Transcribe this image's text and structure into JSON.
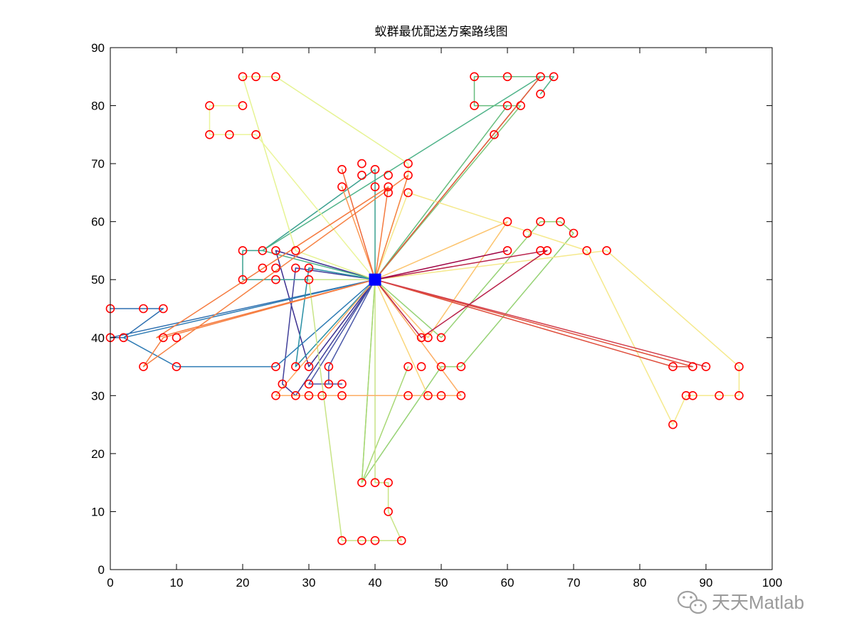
{
  "chart_data": {
    "type": "line",
    "title": "蚁群最优配送方案路线图",
    "xlabel": "",
    "ylabel": "",
    "xlim": [
      0,
      100
    ],
    "ylim": [
      0,
      90
    ],
    "xticks": [
      0,
      10,
      20,
      30,
      40,
      50,
      60,
      70,
      80,
      90,
      100
    ],
    "yticks": [
      0,
      10,
      20,
      30,
      40,
      50,
      60,
      70,
      80,
      90
    ],
    "grid": false,
    "legend": "none",
    "depot": {
      "x": 40,
      "y": 50,
      "color": "#0000ff"
    },
    "customer_marker_color": "#ff0000",
    "customers": [
      [
        0,
        45
      ],
      [
        5,
        45
      ],
      [
        8,
        45
      ],
      [
        0,
        40
      ],
      [
        2,
        40
      ],
      [
        8,
        40
      ],
      [
        10,
        40
      ],
      [
        5,
        35
      ],
      [
        10,
        35
      ],
      [
        20,
        85
      ],
      [
        22,
        85
      ],
      [
        25,
        85
      ],
      [
        15,
        80
      ],
      [
        20,
        80
      ],
      [
        15,
        75
      ],
      [
        18,
        75
      ],
      [
        22,
        75
      ],
      [
        55,
        85
      ],
      [
        60,
        85
      ],
      [
        65,
        85
      ],
      [
        67,
        85
      ],
      [
        55,
        80
      ],
      [
        60,
        80
      ],
      [
        62,
        80
      ],
      [
        65,
        82
      ],
      [
        58,
        75
      ],
      [
        38,
        70
      ],
      [
        40,
        69
      ],
      [
        42,
        68
      ],
      [
        45,
        70
      ],
      [
        35,
        69
      ],
      [
        38,
        68
      ],
      [
        45,
        68
      ],
      [
        35,
        66
      ],
      [
        40,
        66
      ],
      [
        42,
        66
      ],
      [
        42,
        65
      ],
      [
        45,
        65
      ],
      [
        60,
        60
      ],
      [
        65,
        60
      ],
      [
        68,
        60
      ],
      [
        63,
        58
      ],
      [
        70,
        58
      ],
      [
        60,
        55
      ],
      [
        65,
        55
      ],
      [
        66,
        55
      ],
      [
        72,
        55
      ],
      [
        75,
        55
      ],
      [
        20,
        55
      ],
      [
        23,
        55
      ],
      [
        25,
        55
      ],
      [
        28,
        55
      ],
      [
        23,
        52
      ],
      [
        25,
        52
      ],
      [
        28,
        52
      ],
      [
        30,
        52
      ],
      [
        20,
        50
      ],
      [
        25,
        50
      ],
      [
        30,
        50
      ],
      [
        47,
        40
      ],
      [
        48,
        40
      ],
      [
        50,
        40
      ],
      [
        45,
        35
      ],
      [
        47,
        35
      ],
      [
        50,
        35
      ],
      [
        53,
        35
      ],
      [
        85,
        35
      ],
      [
        88,
        35
      ],
      [
        90,
        35
      ],
      [
        95,
        35
      ],
      [
        87,
        30
      ],
      [
        88,
        30
      ],
      [
        92,
        30
      ],
      [
        95,
        30
      ],
      [
        85,
        25
      ],
      [
        25,
        35
      ],
      [
        28,
        35
      ],
      [
        30,
        35
      ],
      [
        33,
        35
      ],
      [
        26,
        32
      ],
      [
        30,
        32
      ],
      [
        33,
        32
      ],
      [
        35,
        32
      ],
      [
        25,
        30
      ],
      [
        28,
        30
      ],
      [
        30,
        30
      ],
      [
        32,
        30
      ],
      [
        35,
        30
      ],
      [
        45,
        30
      ],
      [
        48,
        30
      ],
      [
        50,
        30
      ],
      [
        53,
        30
      ],
      [
        38,
        15
      ],
      [
        40,
        15
      ],
      [
        42,
        15
      ],
      [
        42,
        10
      ],
      [
        35,
        5
      ],
      [
        38,
        5
      ],
      [
        40,
        5
      ],
      [
        44,
        5
      ]
    ],
    "series": [
      {
        "color": "#3b2f8f",
        "points": [
          [
            40,
            50
          ],
          [
            25,
            55
          ],
          [
            30,
            35
          ],
          [
            40,
            50
          ]
        ]
      },
      {
        "color": "#41409a",
        "points": [
          [
            40,
            50
          ],
          [
            28,
            52
          ],
          [
            26,
            32
          ],
          [
            28,
            30
          ],
          [
            40,
            50
          ]
        ]
      },
      {
        "color": "#4a57a8",
        "points": [
          [
            40,
            50
          ],
          [
            33,
            35
          ],
          [
            33,
            32
          ],
          [
            35,
            32
          ],
          [
            30,
            32
          ],
          [
            40,
            50
          ]
        ]
      },
      {
        "color": "#2d6fb0",
        "points": [
          [
            40,
            50
          ],
          [
            0,
            40
          ],
          [
            2,
            40
          ],
          [
            8,
            45
          ],
          [
            5,
            45
          ],
          [
            0,
            45
          ]
        ]
      },
      {
        "color": "#2e7bb4",
        "points": [
          [
            40,
            50
          ],
          [
            2,
            40
          ],
          [
            10,
            35
          ],
          [
            25,
            35
          ],
          [
            40,
            50
          ]
        ]
      },
      {
        "color": "#288fa5",
        "points": [
          [
            40,
            50
          ],
          [
            30,
            52
          ],
          [
            28,
            35
          ],
          [
            40,
            50
          ]
        ]
      },
      {
        "color": "#3aa08f",
        "points": [
          [
            40,
            50
          ],
          [
            30,
            50
          ],
          [
            20,
            50
          ],
          [
            20,
            55
          ],
          [
            23,
            55
          ],
          [
            40,
            69
          ],
          [
            40,
            50
          ]
        ]
      },
      {
        "color": "#4fb389",
        "points": [
          [
            40,
            50
          ],
          [
            23,
            55
          ],
          [
            65,
            85
          ],
          [
            67,
            85
          ],
          [
            65,
            82
          ]
        ]
      },
      {
        "color": "#66bd7e",
        "points": [
          [
            40,
            50
          ],
          [
            60,
            80
          ],
          [
            55,
            80
          ],
          [
            55,
            85
          ],
          [
            60,
            85
          ],
          [
            65,
            85
          ],
          [
            40,
            50
          ]
        ]
      },
      {
        "color": "#7fc87c",
        "points": [
          [
            40,
            50
          ],
          [
            62,
            80
          ],
          [
            60,
            80
          ]
        ]
      },
      {
        "color": "#96d274",
        "points": [
          [
            40,
            50
          ],
          [
            38,
            15
          ],
          [
            50,
            35
          ],
          [
            53,
            35
          ],
          [
            70,
            58
          ],
          [
            68,
            60
          ],
          [
            65,
            60
          ],
          [
            50,
            40
          ],
          [
            40,
            50
          ]
        ]
      },
      {
        "color": "#a8d875",
        "points": [
          [
            40,
            50
          ],
          [
            38,
            15
          ],
          [
            45,
            35
          ]
        ]
      },
      {
        "color": "#c8e486",
        "points": [
          [
            40,
            50
          ],
          [
            30,
            50
          ],
          [
            35,
            5
          ],
          [
            38,
            5
          ],
          [
            40,
            5
          ],
          [
            44,
            5
          ],
          [
            42,
            10
          ],
          [
            42,
            15
          ],
          [
            40,
            15
          ],
          [
            40,
            50
          ]
        ]
      },
      {
        "color": "#e6f393",
        "points": [
          [
            40,
            50
          ],
          [
            28,
            55
          ],
          [
            20,
            85
          ],
          [
            22,
            85
          ],
          [
            25,
            85
          ],
          [
            45,
            70
          ],
          [
            45,
            68
          ],
          [
            40,
            50
          ]
        ]
      },
      {
        "color": "#ebf59b",
        "points": [
          [
            40,
            50
          ],
          [
            22,
            75
          ],
          [
            18,
            75
          ],
          [
            15,
            75
          ],
          [
            15,
            80
          ],
          [
            20,
            80
          ]
        ]
      },
      {
        "color": "#f5e98c",
        "points": [
          [
            40,
            50
          ],
          [
            45,
            65
          ],
          [
            72,
            55
          ],
          [
            85,
            25
          ],
          [
            87,
            30
          ],
          [
            88,
            30
          ],
          [
            92,
            30
          ],
          [
            95,
            30
          ],
          [
            95,
            35
          ],
          [
            75,
            55
          ],
          [
            40,
            50
          ]
        ]
      },
      {
        "color": "#fad67b",
        "points": [
          [
            40,
            50
          ],
          [
            48,
            30
          ],
          [
            40,
            50
          ]
        ]
      },
      {
        "color": "#fcc46e",
        "points": [
          [
            40,
            50
          ],
          [
            60,
            60
          ],
          [
            48,
            40
          ],
          [
            40,
            50
          ]
        ]
      },
      {
        "color": "#fdac62",
        "points": [
          [
            40,
            50
          ],
          [
            25,
            30
          ],
          [
            53,
            30
          ],
          [
            40,
            50
          ]
        ]
      },
      {
        "color": "#fb9852",
        "points": [
          [
            40,
            50
          ],
          [
            35,
            66
          ],
          [
            40,
            50
          ]
        ]
      },
      {
        "color": "#f68244",
        "points": [
          [
            40,
            50
          ],
          [
            8,
            40
          ],
          [
            5,
            35
          ],
          [
            45,
            68
          ],
          [
            40,
            50
          ]
        ]
      },
      {
        "color": "#f57a3f",
        "points": [
          [
            40,
            50
          ],
          [
            7,
            40
          ],
          [
            42,
            66
          ],
          [
            40,
            50
          ]
        ]
      },
      {
        "color": "#ee6a3b",
        "points": [
          [
            40,
            50
          ],
          [
            35,
            69
          ],
          [
            40,
            50
          ]
        ]
      },
      {
        "color": "#e8593b",
        "points": [
          [
            40,
            50
          ],
          [
            65,
            85
          ],
          [
            40,
            50
          ]
        ]
      },
      {
        "color": "#df4d3b",
        "points": [
          [
            40,
            50
          ],
          [
            88,
            35
          ],
          [
            85,
            35
          ],
          [
            40,
            50
          ]
        ]
      },
      {
        "color": "#d23e4b",
        "points": [
          [
            40,
            50
          ],
          [
            90,
            35
          ],
          [
            40,
            50
          ]
        ]
      },
      {
        "color": "#b9224a",
        "points": [
          [
            40,
            50
          ],
          [
            66,
            55
          ],
          [
            47,
            40
          ],
          [
            40,
            50
          ]
        ]
      },
      {
        "color": "#9e0142",
        "points": [
          [
            40,
            50
          ],
          [
            60,
            55
          ],
          [
            40,
            50
          ]
        ]
      }
    ]
  },
  "watermark": {
    "text": "天天Matlab",
    "icon": "wechat-icon"
  }
}
